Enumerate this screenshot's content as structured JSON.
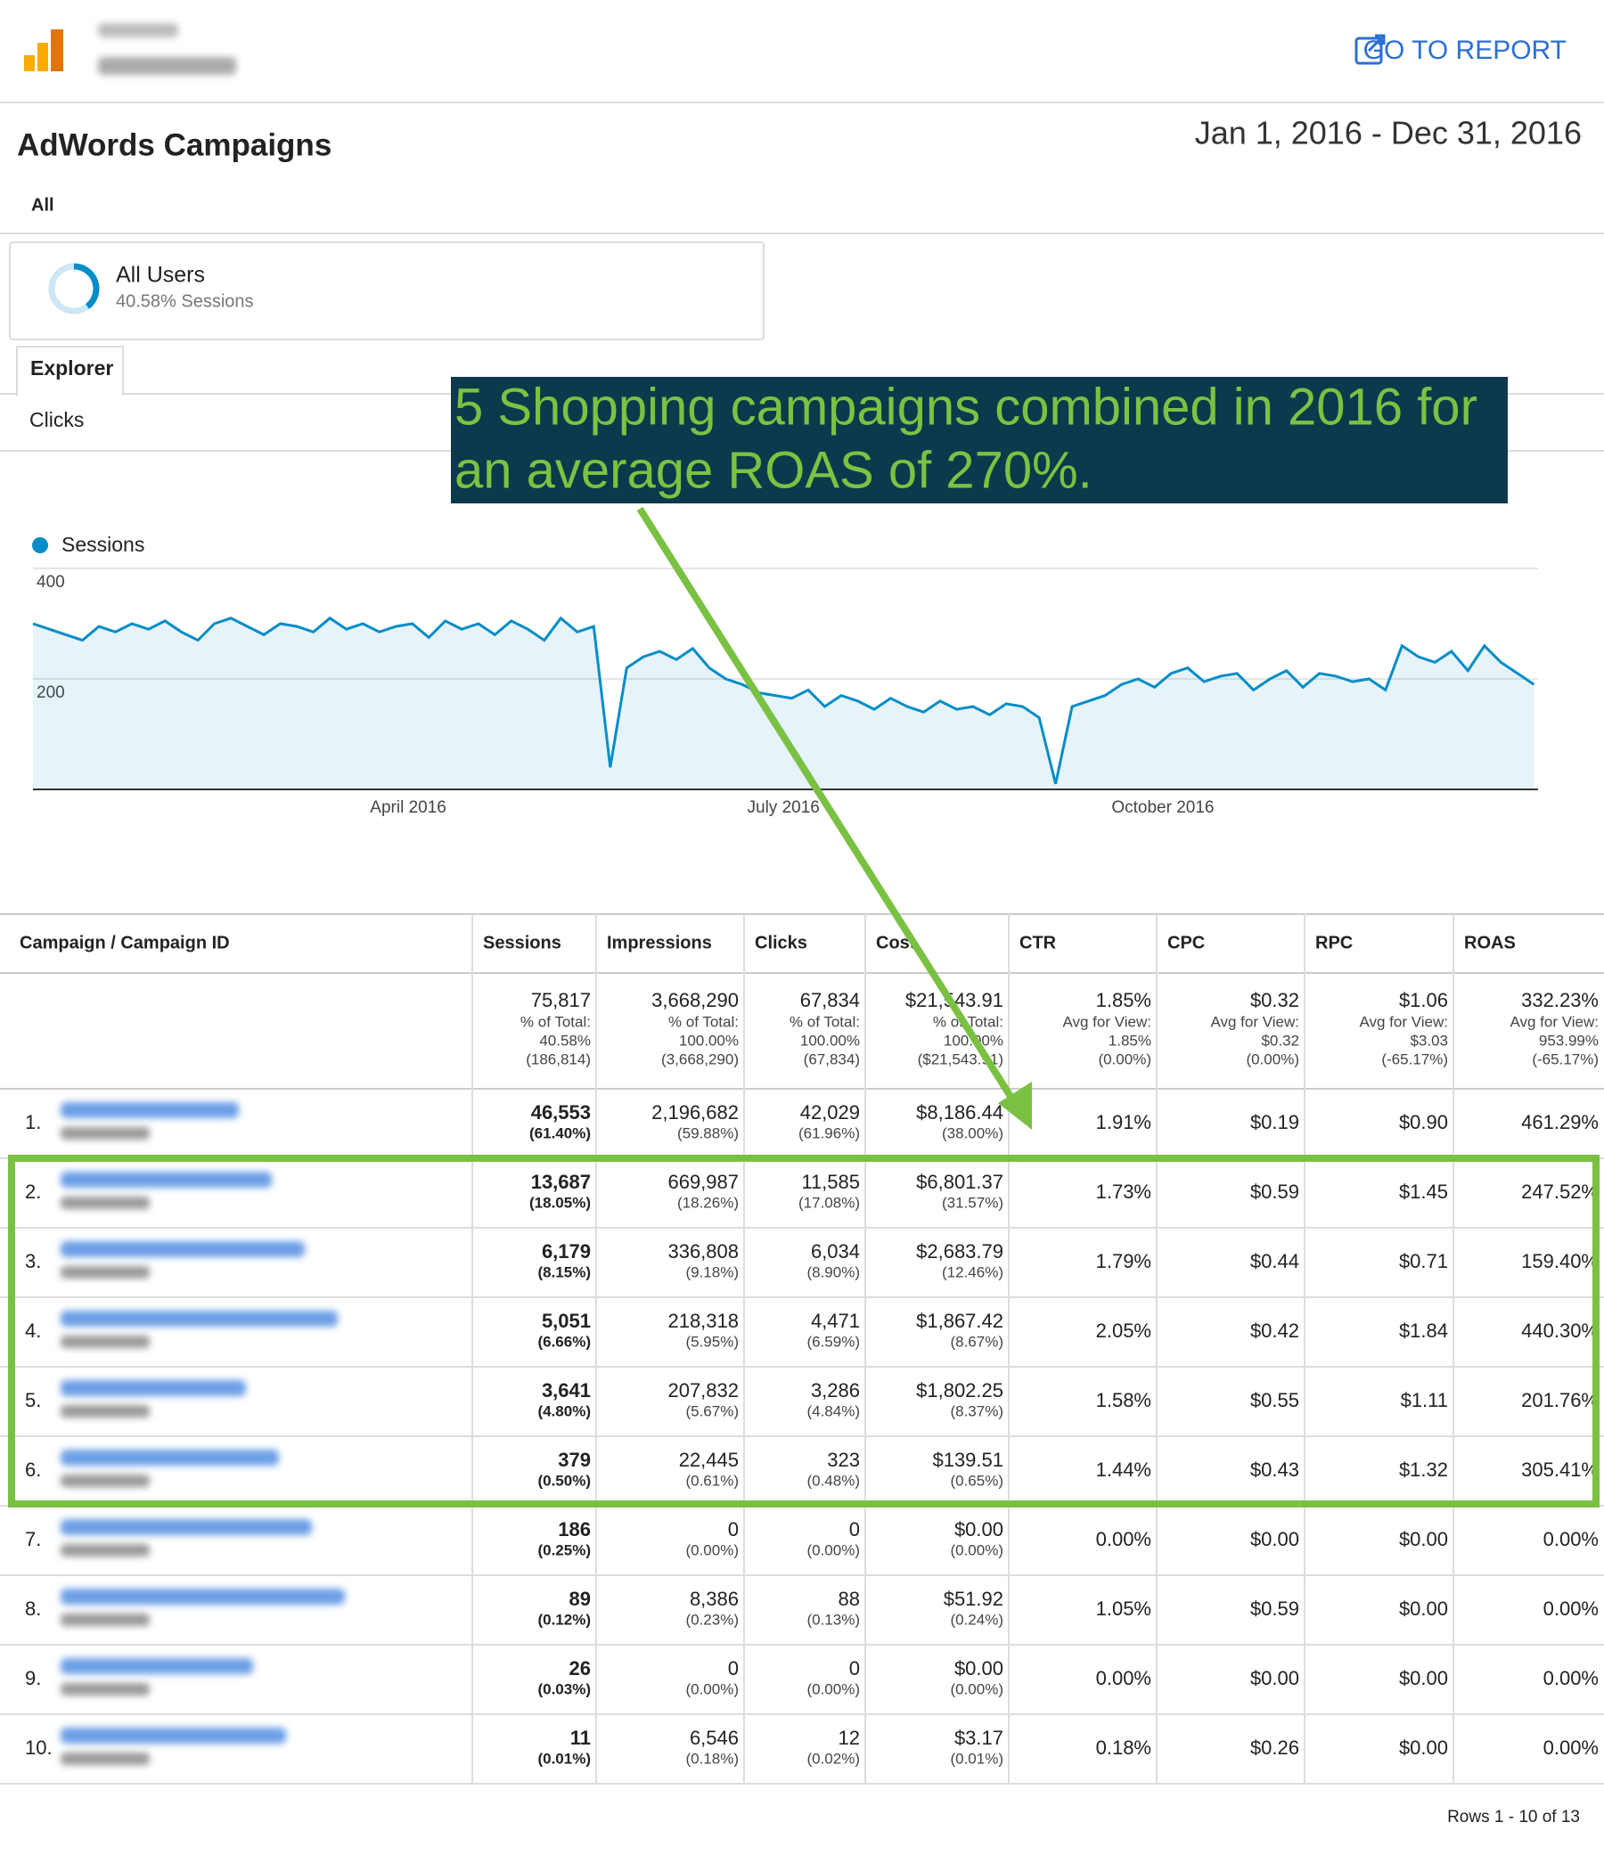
{
  "header": {
    "action": "GO TO REPORT"
  },
  "report": {
    "title": "AdWords Campaigns",
    "date_range": "Jan 1, 2016 - Dec 31, 2016",
    "filter": "All"
  },
  "segment": {
    "name": "All Users",
    "detail": "40.58% Sessions"
  },
  "tabs": {
    "active": "Explorer",
    "metric": "Clicks"
  },
  "chart_data": {
    "type": "line",
    "series_name": "Sessions",
    "color": "#058dc7",
    "x": [
      0,
      4,
      8,
      12,
      16,
      20,
      24,
      28,
      32,
      36,
      40,
      44,
      48,
      52,
      56,
      60,
      64,
      68,
      72,
      76,
      80,
      84,
      88,
      92,
      96,
      100,
      104,
      108,
      112,
      116,
      120,
      124,
      128,
      132,
      136,
      140,
      144,
      148,
      152,
      156,
      160,
      164,
      168,
      172,
      176,
      180,
      184,
      188,
      192,
      196,
      200,
      204,
      208,
      212,
      216,
      220,
      224,
      228,
      232,
      236,
      240,
      244,
      248,
      252,
      256,
      260,
      264,
      268,
      272,
      276,
      280,
      284,
      288,
      292,
      296,
      300,
      304,
      308,
      312,
      316,
      320,
      324,
      328,
      332,
      336,
      340,
      344,
      348,
      352,
      356,
      360,
      364
    ],
    "values": [
      300,
      290,
      280,
      270,
      295,
      285,
      300,
      290,
      305,
      285,
      270,
      300,
      310,
      295,
      280,
      300,
      295,
      285,
      310,
      290,
      300,
      285,
      295,
      300,
      275,
      305,
      290,
      300,
      280,
      305,
      290,
      270,
      310,
      285,
      295,
      40,
      220,
      240,
      250,
      235,
      255,
      220,
      200,
      190,
      175,
      170,
      165,
      180,
      150,
      170,
      160,
      145,
      165,
      150,
      140,
      160,
      145,
      150,
      135,
      155,
      150,
      130,
      10,
      150,
      160,
      170,
      190,
      200,
      185,
      210,
      220,
      195,
      205,
      210,
      180,
      200,
      215,
      185,
      210,
      205,
      195,
      200,
      180,
      260,
      240,
      230,
      250,
      215,
      260,
      230,
      210,
      190
    ],
    "xlim": [
      0,
      365
    ],
    "xticks": [
      {
        "value": 91,
        "label": "April 2016"
      },
      {
        "value": 182,
        "label": "July 2016"
      },
      {
        "value": 274,
        "label": "October 2016"
      }
    ],
    "ylim": [
      0,
      400
    ],
    "yticks": [
      200,
      400
    ],
    "grid": true
  },
  "annotation": {
    "lines": [
      "5 Shopping campaigns combined in 2016 for",
      "an average ROAS of 270%."
    ]
  },
  "table": {
    "columns": [
      "Campaign / Campaign ID",
      "Sessions",
      "Impressions",
      "Clicks",
      "Cost",
      "CTR",
      "CPC",
      "RPC",
      "ROAS"
    ],
    "totals": [
      [
        "75,817",
        "% of Total:",
        "40.58%",
        "(186,814)"
      ],
      [
        "3,668,290",
        "% of Total:",
        "100.00%",
        "(3,668,290)"
      ],
      [
        "67,834",
        "% of Total:",
        "100.00%",
        "(67,834)"
      ],
      [
        "$21,543.91",
        "% of Total:",
        "100.00%",
        "($21,543.91)"
      ],
      [
        "1.85%",
        "Avg for View:",
        "1.85%",
        "(0.00%)"
      ],
      [
        "$0.32",
        "Avg for View:",
        "$0.32",
        "(0.00%)"
      ],
      [
        "$1.06",
        "Avg for View:",
        "$3.03",
        "(-65.17%)"
      ],
      [
        "332.23%",
        "Avg for View:",
        "953.99%",
        "(-65.17%)"
      ]
    ],
    "rows": [
      {
        "num": "1.",
        "cells": [
          [
            "46,553",
            "(61.40%)"
          ],
          [
            "2,196,682",
            "(59.88%)"
          ],
          [
            "42,029",
            "(61.96%)"
          ],
          [
            "$8,186.44",
            "(38.00%)"
          ],
          [
            "1.91%"
          ],
          [
            "$0.19"
          ],
          [
            "$0.90"
          ],
          [
            "461.29%"
          ]
        ]
      },
      {
        "num": "2.",
        "cells": [
          [
            "13,687",
            "(18.05%)"
          ],
          [
            "669,987",
            "(18.26%)"
          ],
          [
            "11,585",
            "(17.08%)"
          ],
          [
            "$6,801.37",
            "(31.57%)"
          ],
          [
            "1.73%"
          ],
          [
            "$0.59"
          ],
          [
            "$1.45"
          ],
          [
            "247.52%"
          ]
        ]
      },
      {
        "num": "3.",
        "cells": [
          [
            "6,179",
            "(8.15%)"
          ],
          [
            "336,808",
            "(9.18%)"
          ],
          [
            "6,034",
            "(8.90%)"
          ],
          [
            "$2,683.79",
            "(12.46%)"
          ],
          [
            "1.79%"
          ],
          [
            "$0.44"
          ],
          [
            "$0.71"
          ],
          [
            "159.40%"
          ]
        ]
      },
      {
        "num": "4.",
        "cells": [
          [
            "5,051",
            "(6.66%)"
          ],
          [
            "218,318",
            "(5.95%)"
          ],
          [
            "4,471",
            "(6.59%)"
          ],
          [
            "$1,867.42",
            "(8.67%)"
          ],
          [
            "2.05%"
          ],
          [
            "$0.42"
          ],
          [
            "$1.84"
          ],
          [
            "440.30%"
          ]
        ]
      },
      {
        "num": "5.",
        "cells": [
          [
            "3,641",
            "(4.80%)"
          ],
          [
            "207,832",
            "(5.67%)"
          ],
          [
            "3,286",
            "(4.84%)"
          ],
          [
            "$1,802.25",
            "(8.37%)"
          ],
          [
            "1.58%"
          ],
          [
            "$0.55"
          ],
          [
            "$1.11"
          ],
          [
            "201.76%"
          ]
        ]
      },
      {
        "num": "6.",
        "cells": [
          [
            "379",
            "(0.50%)"
          ],
          [
            "22,445",
            "(0.61%)"
          ],
          [
            "323",
            "(0.48%)"
          ],
          [
            "$139.51",
            "(0.65%)"
          ],
          [
            "1.44%"
          ],
          [
            "$0.43"
          ],
          [
            "$1.32"
          ],
          [
            "305.41%"
          ]
        ]
      },
      {
        "num": "7.",
        "cells": [
          [
            "186",
            "(0.25%)"
          ],
          [
            "0",
            "(0.00%)"
          ],
          [
            "0",
            "(0.00%)"
          ],
          [
            "$0.00",
            "(0.00%)"
          ],
          [
            "0.00%"
          ],
          [
            "$0.00"
          ],
          [
            "$0.00"
          ],
          [
            "0.00%"
          ]
        ]
      },
      {
        "num": "8.",
        "cells": [
          [
            "89",
            "(0.12%)"
          ],
          [
            "8,386",
            "(0.23%)"
          ],
          [
            "88",
            "(0.13%)"
          ],
          [
            "$51.92",
            "(0.24%)"
          ],
          [
            "1.05%"
          ],
          [
            "$0.59"
          ],
          [
            "$0.00"
          ],
          [
            "0.00%"
          ]
        ]
      },
      {
        "num": "9.",
        "cells": [
          [
            "26",
            "(0.03%)"
          ],
          [
            "0",
            "(0.00%)"
          ],
          [
            "0",
            "(0.00%)"
          ],
          [
            "$0.00",
            "(0.00%)"
          ],
          [
            "0.00%"
          ],
          [
            "$0.00"
          ],
          [
            "$0.00"
          ],
          [
            "0.00%"
          ]
        ]
      },
      {
        "num": "10.",
        "cells": [
          [
            "11",
            "(0.01%)"
          ],
          [
            "6,546",
            "(0.18%)"
          ],
          [
            "12",
            "(0.02%)"
          ],
          [
            "$3.17",
            "(0.01%)"
          ],
          [
            "0.18%"
          ],
          [
            "$0.26"
          ],
          [
            "$0.00"
          ],
          [
            "0.00%"
          ]
        ]
      }
    ],
    "footer": "Rows 1 - 10 of 13"
  }
}
